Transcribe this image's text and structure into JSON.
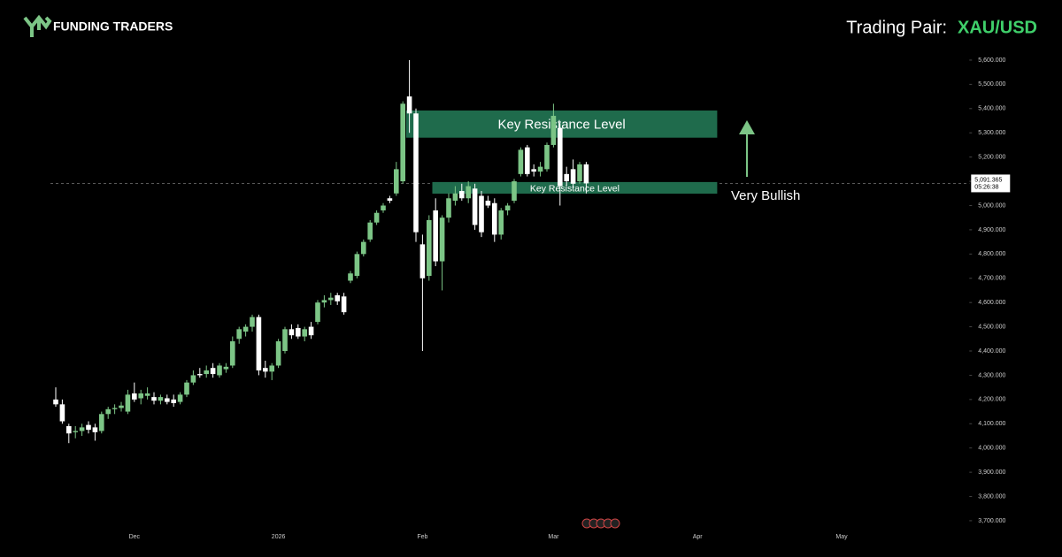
{
  "header": {
    "brand": "FUNDING TRADERS",
    "pair_label": "Trading Pair:",
    "pair": "XAU/USD"
  },
  "chart_data": {
    "type": "candlestick",
    "up_color": "#7cc586",
    "down_color": "#ffffff",
    "categories": [
      null,
      null,
      null,
      null,
      null,
      null,
      null,
      null,
      null,
      null,
      null,
      null,
      "Dec",
      null,
      null,
      null,
      null,
      null,
      null,
      null,
      null,
      null,
      null,
      null,
      null,
      null,
      null,
      null,
      null,
      null,
      null,
      null,
      null,
      null,
      "2026",
      null,
      null,
      null,
      null,
      null,
      null,
      null,
      null,
      null,
      null,
      null,
      null,
      null,
      null,
      null,
      null,
      null,
      null,
      null,
      null,
      null,
      "Feb",
      null,
      null,
      null,
      null,
      null,
      null,
      null,
      null,
      null,
      null,
      null,
      null,
      null,
      null,
      null,
      null,
      null,
      null,
      null,
      "Mar",
      null,
      null,
      null,
      null,
      null,
      null,
      null,
      null,
      null,
      null,
      null,
      null,
      null,
      null,
      null,
      null,
      null,
      null,
      null,
      null,
      null,
      "Apr",
      null,
      null,
      null,
      null,
      null,
      null,
      null,
      null,
      null,
      null,
      null,
      null,
      null,
      null,
      null,
      null,
      null,
      null,
      null,
      null,
      null,
      "May",
      null,
      null,
      null,
      null,
      null,
      null,
      null,
      null,
      null,
      null,
      null,
      null,
      null,
      null,
      null,
      null,
      null,
      null,
      null
    ],
    "open": [
      4200,
      4180,
      4090,
      4065,
      4070,
      4095,
      4085,
      4070,
      4140,
      4160,
      4165,
      4150,
      4225,
      4205,
      4215,
      4210,
      4195,
      4205,
      4200,
      4190,
      4220,
      4270,
      4305,
      4305,
      4330,
      4300,
      4325,
      4340,
      4450,
      4480,
      4500,
      4540,
      4330,
      4315,
      4340,
      4400,
      4490,
      4495,
      4460,
      4500,
      4520,
      4600,
      4610,
      4630,
      4625,
      4690,
      4710,
      4800,
      4860,
      4930,
      4980,
      5030,
      5050,
      5100,
      5450,
      5380,
      4840,
      4710,
      4980,
      4770,
      4950,
      5020,
      5060,
      5030,
      5070,
      5040,
      5020,
      5010,
      4880,
      4980,
      5020,
      5130,
      5240,
      5150,
      5140,
      5150,
      5250,
      5320,
      5130,
      5150,
      5100,
      5170,
      null,
      null,
      null,
      null,
      null,
      null,
      null,
      null,
      null,
      null,
      null,
      null,
      null,
      null,
      null,
      null,
      null,
      null,
      null,
      null,
      null,
      null,
      null,
      null,
      null,
      null,
      null,
      null,
      null,
      null,
      null,
      null,
      null,
      null,
      null,
      null,
      null,
      null,
      null,
      null,
      null,
      null,
      null,
      null,
      null,
      null,
      null,
      null,
      null,
      null,
      null,
      null,
      null,
      null,
      null,
      null,
      null,
      null
    ],
    "high": [
      4250,
      4200,
      4100,
      4090,
      4100,
      4110,
      4100,
      4150,
      4170,
      4180,
      4190,
      4240,
      4270,
      4240,
      4250,
      4230,
      4220,
      4220,
      4220,
      4230,
      4280,
      4320,
      4330,
      4340,
      4350,
      4350,
      4350,
      4460,
      4500,
      4510,
      4550,
      4550,
      4360,
      4350,
      4450,
      4500,
      4510,
      4510,
      4500,
      4520,
      4610,
      4630,
      4640,
      4640,
      4640,
      4730,
      4810,
      4860,
      4940,
      4980,
      5010,
      5040,
      5180,
      5430,
      5600,
      5400,
      4880,
      4960,
      5030,
      4960,
      5050,
      5080,
      5090,
      5100,
      5090,
      5060,
      5040,
      5030,
      4990,
      5010,
      5110,
      5240,
      5250,
      5170,
      5180,
      5260,
      5420,
      5340,
      5160,
      5190,
      5180,
      5180,
      null,
      null,
      null,
      null,
      null,
      null,
      null,
      null,
      null,
      null,
      null,
      null,
      null,
      null,
      null,
      null,
      null,
      null,
      null,
      null,
      null,
      null,
      null,
      null,
      null,
      null,
      null,
      null,
      null,
      null,
      null,
      null,
      null,
      null,
      null,
      null,
      null,
      null,
      null,
      null,
      null,
      null,
      null,
      null,
      null,
      null,
      null,
      null,
      null,
      null,
      null,
      null,
      null,
      null,
      null,
      null,
      null,
      null
    ],
    "low": [
      4170,
      4100,
      4020,
      4040,
      4050,
      4060,
      4030,
      4060,
      4120,
      4140,
      4150,
      4140,
      4190,
      4180,
      4200,
      4180,
      4180,
      4180,
      4170,
      4180,
      4210,
      4260,
      4290,
      4290,
      4290,
      4290,
      4310,
      4330,
      4430,
      4460,
      4480,
      4300,
      4290,
      4280,
      4330,
      4390,
      4450,
      4450,
      4440,
      4450,
      4510,
      4580,
      4590,
      4590,
      4550,
      4680,
      4700,
      4790,
      4850,
      4920,
      4970,
      5010,
      5040,
      5090,
      5300,
      4850,
      4400,
      4690,
      4750,
      4650,
      4930,
      5000,
      5020,
      5010,
      4900,
      4870,
      4990,
      4850,
      4860,
      4960,
      5010,
      5120,
      5120,
      5120,
      5120,
      5140,
      5240,
      5000,
      5080,
      5070,
      5090,
      5050,
      null,
      null,
      null,
      null,
      null,
      null,
      null,
      null,
      null,
      null,
      null,
      null,
      null,
      null,
      null,
      null,
      null,
      null,
      null,
      null,
      null,
      null,
      null,
      null,
      null,
      null,
      null,
      null,
      null,
      null,
      null,
      null,
      null,
      null,
      null,
      null,
      null,
      null,
      null,
      null,
      null,
      null,
      null,
      null,
      null,
      null,
      null,
      null,
      null,
      null,
      null,
      null,
      null,
      null,
      null,
      null,
      null,
      null
    ],
    "close": [
      4180,
      4110,
      4060,
      4070,
      4085,
      4075,
      4065,
      4140,
      4160,
      4165,
      4175,
      4220,
      4200,
      4225,
      4225,
      4195,
      4210,
      4190,
      4185,
      4220,
      4270,
      4300,
      4300,
      4320,
      4305,
      4340,
      4335,
      4440,
      4490,
      4500,
      4540,
      4320,
      4315,
      4340,
      4440,
      4490,
      4465,
      4460,
      4490,
      4465,
      4600,
      4610,
      4620,
      4605,
      4560,
      4720,
      4800,
      4850,
      4930,
      4970,
      5000,
      5020,
      5150,
      5420,
      5380,
      4890,
      4700,
      4940,
      4770,
      4950,
      5030,
      5050,
      5030,
      5080,
      4920,
      4890,
      5000,
      4880,
      4980,
      5000,
      5100,
      5230,
      5130,
      5140,
      5160,
      5250,
      5370,
      5080,
      5100,
      5090,
      5170,
      5091.365,
      null,
      null,
      null,
      null,
      null,
      null,
      null,
      null,
      null,
      null,
      null,
      null,
      null,
      null,
      null,
      null,
      null,
      null,
      null,
      null,
      null,
      null,
      null,
      null,
      null,
      null,
      null,
      null,
      null,
      null,
      null,
      null,
      null,
      null,
      null,
      null,
      null,
      null,
      null,
      null,
      null,
      null,
      null,
      null,
      null,
      null,
      null,
      null,
      null,
      null,
      null,
      null,
      null,
      null,
      null,
      null,
      null,
      null
    ],
    "ylim": [
      3667,
      5702
    ],
    "yticks": [
      {
        "value": 5600,
        "label": "5,600.000"
      },
      {
        "value": 5500,
        "label": "5,500.000"
      },
      {
        "value": 5400,
        "label": "5,400.000"
      },
      {
        "value": 5300,
        "label": "5,300.000"
      },
      {
        "value": 5200,
        "label": "5,200.000"
      },
      {
        "value": 5100,
        "label": "5,100.000"
      },
      {
        "value": 5000,
        "label": "5,000.000"
      },
      {
        "value": 4900,
        "label": "4,900.000"
      },
      {
        "value": 4800,
        "label": "4,800.000"
      },
      {
        "value": 4700,
        "label": "4,700.000"
      },
      {
        "value": 4600,
        "label": "4,600.000"
      },
      {
        "value": 4500,
        "label": "4,500.000"
      },
      {
        "value": 4400,
        "label": "4,400.000"
      },
      {
        "value": 4300,
        "label": "4,300.000"
      },
      {
        "value": 4200,
        "label": "4,200.000"
      },
      {
        "value": 4100,
        "label": "4,100.000"
      },
      {
        "value": 4000,
        "label": "4,000.000"
      },
      {
        "value": 3900,
        "label": "3,900.000"
      },
      {
        "value": 3800,
        "label": "3,800.000"
      },
      {
        "value": 3700,
        "label": "3,700.000"
      }
    ],
    "last_price": {
      "value": 5091.365,
      "label": "5,091.365"
    },
    "countdown": "05:26:38",
    "zones": [
      {
        "label": "Key Resistance Level",
        "low": 5280,
        "high": 5392,
        "start": 54,
        "end": 101,
        "color": "#1f6b4c"
      },
      {
        "label": "Key Resistance Level",
        "low": 5049,
        "high": 5097,
        "start": 58,
        "end": 101,
        "color": "#1f6b4c"
      }
    ],
    "annotation": "Very Bullish"
  }
}
